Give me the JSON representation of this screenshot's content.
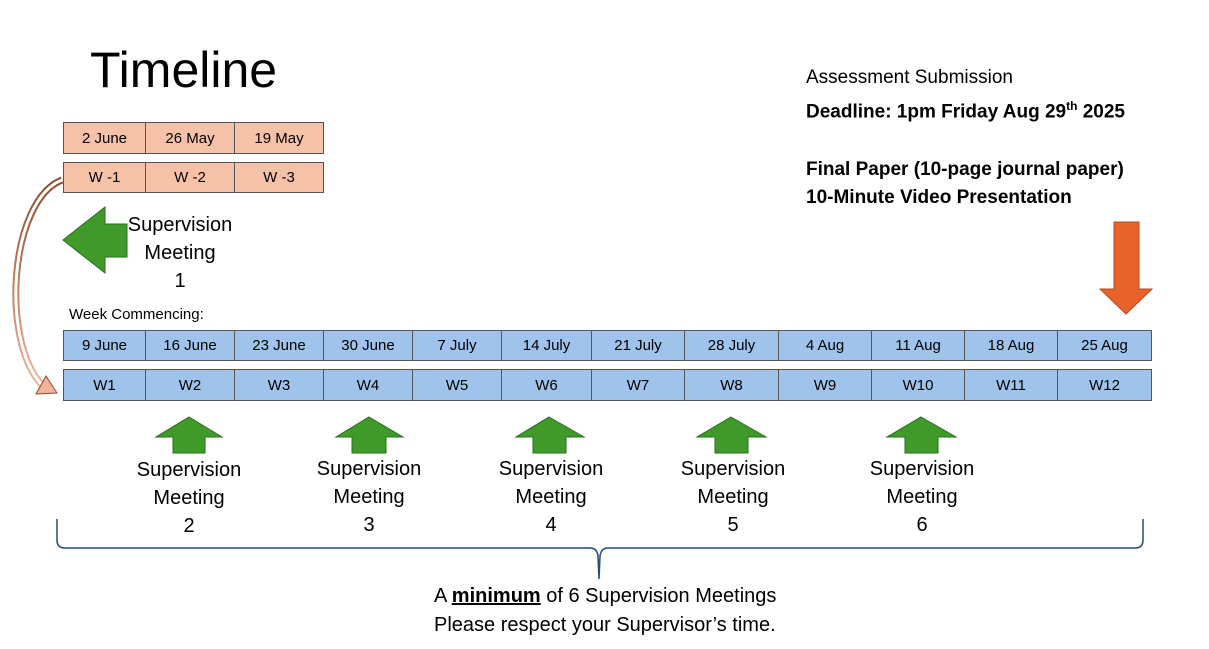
{
  "title": "Timeline",
  "pre_weeks": {
    "dates": [
      "2 June",
      "26 May",
      "19 May"
    ],
    "labels": [
      "W -1",
      "W -2",
      "W -3"
    ]
  },
  "week_commencing_label": "Week Commencing:",
  "weeks": {
    "dates": [
      "9 June",
      "16 June",
      "23 June",
      "30 June",
      "7 July",
      "14 July",
      "21 July",
      "28 July",
      "4 Aug",
      "11 Aug",
      "18 Aug",
      "25 Aug"
    ],
    "labels": [
      "W1",
      "W2",
      "W3",
      "W4",
      "W5",
      "W6",
      "W7",
      "W8",
      "W9",
      "W10",
      "W11",
      "W12"
    ]
  },
  "meetings": [
    {
      "line1": "Supervision",
      "line2": "Meeting",
      "number": "1"
    },
    {
      "line1": "Supervision",
      "line2": "Meeting",
      "number": "2"
    },
    {
      "line1": "Supervision",
      "line2": "Meeting",
      "number": "3"
    },
    {
      "line1": "Supervision",
      "line2": "Meeting",
      "number": "4"
    },
    {
      "line1": "Supervision",
      "line2": "Meeting",
      "number": "5"
    },
    {
      "line1": "Supervision",
      "line2": "Meeting",
      "number": "6"
    }
  ],
  "assessment": {
    "heading": "Assessment Submission",
    "deadline_prefix": "Deadline: 1pm Friday Aug 29",
    "deadline_sup": "th",
    "deadline_suffix": " 2025",
    "item1": "Final Paper (10-page journal paper)",
    "item2": "10-Minute Video Presentation"
  },
  "footer": {
    "pre": "A ",
    "emphasis": "minimum",
    "post": " of 6 Supervision Meetings",
    "line2": "Please respect your Supervisor’s time."
  },
  "colors": {
    "pre_week_fill": "#f5c2a8",
    "week_fill": "#9fc3ea",
    "meeting_arrow": "#3f9a2a",
    "deadline_arrow": "#e8622c",
    "brace": "#1f4e79"
  },
  "icons": {
    "meeting_arrow_up": "up-arrow-icon",
    "meeting_arrow_left": "left-arrow-icon",
    "deadline_arrow": "down-arrow-icon",
    "loop_arrow": "curved-arrow-icon"
  }
}
